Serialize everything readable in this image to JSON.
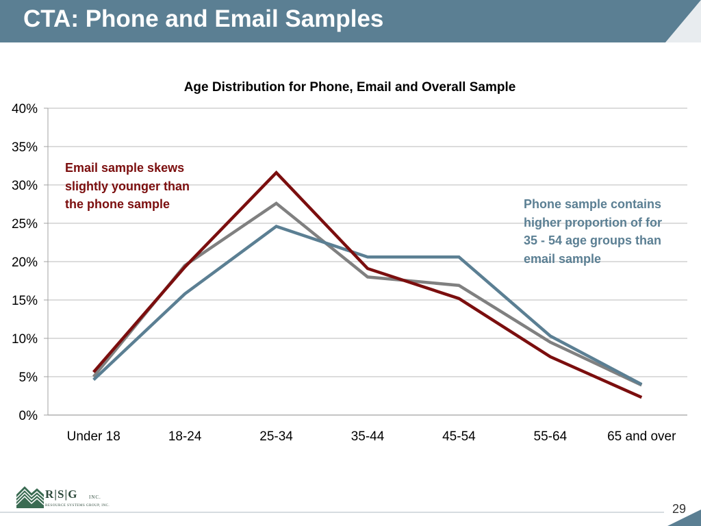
{
  "header": {
    "title": "CTA: Phone and Email Samples"
  },
  "colors": {
    "header_bg": "#5b7f93",
    "email": "#7b0e0e",
    "phone": "#5b7f93",
    "overall": "#808080",
    "grid": "#c8c8c8"
  },
  "chart_data": {
    "type": "line",
    "title": "Age Distribution for Phone, Email and Overall Sample",
    "categories": [
      "Under 18",
      "18-24",
      "25-34",
      "35-44",
      "45-54",
      "55-64",
      "65 and over"
    ],
    "y_unit": "%",
    "ylim": [
      0,
      40
    ],
    "yticks": [
      "0%",
      "5%",
      "10%",
      "15%",
      "20%",
      "25%",
      "30%",
      "35%",
      "40%"
    ],
    "grid": true,
    "legend": "none",
    "series": [
      {
        "key": "overall",
        "values": [
          5.0,
          19.5,
          27.6,
          18.0,
          16.9,
          9.5,
          3.9
        ]
      },
      {
        "key": "phone",
        "values": [
          4.6,
          15.8,
          24.6,
          20.6,
          20.6,
          10.3,
          4.0
        ]
      },
      {
        "key": "email",
        "values": [
          5.6,
          19.3,
          31.6,
          19.1,
          15.2,
          7.6,
          2.3
        ]
      }
    ],
    "annotations": {
      "email_lines": [
        "Email sample skews",
        "slightly younger than",
        "the phone sample"
      ],
      "phone_lines": [
        "Phone sample contains",
        "higher proportion of for",
        "35 - 54 age groups than",
        "email sample"
      ]
    }
  },
  "footer": {
    "logo_letters": "R|S|G",
    "logo_inc": "INC.",
    "logo_subtitle": "RESOURCE SYSTEMS GROUP, INC.",
    "page_number": "29"
  }
}
